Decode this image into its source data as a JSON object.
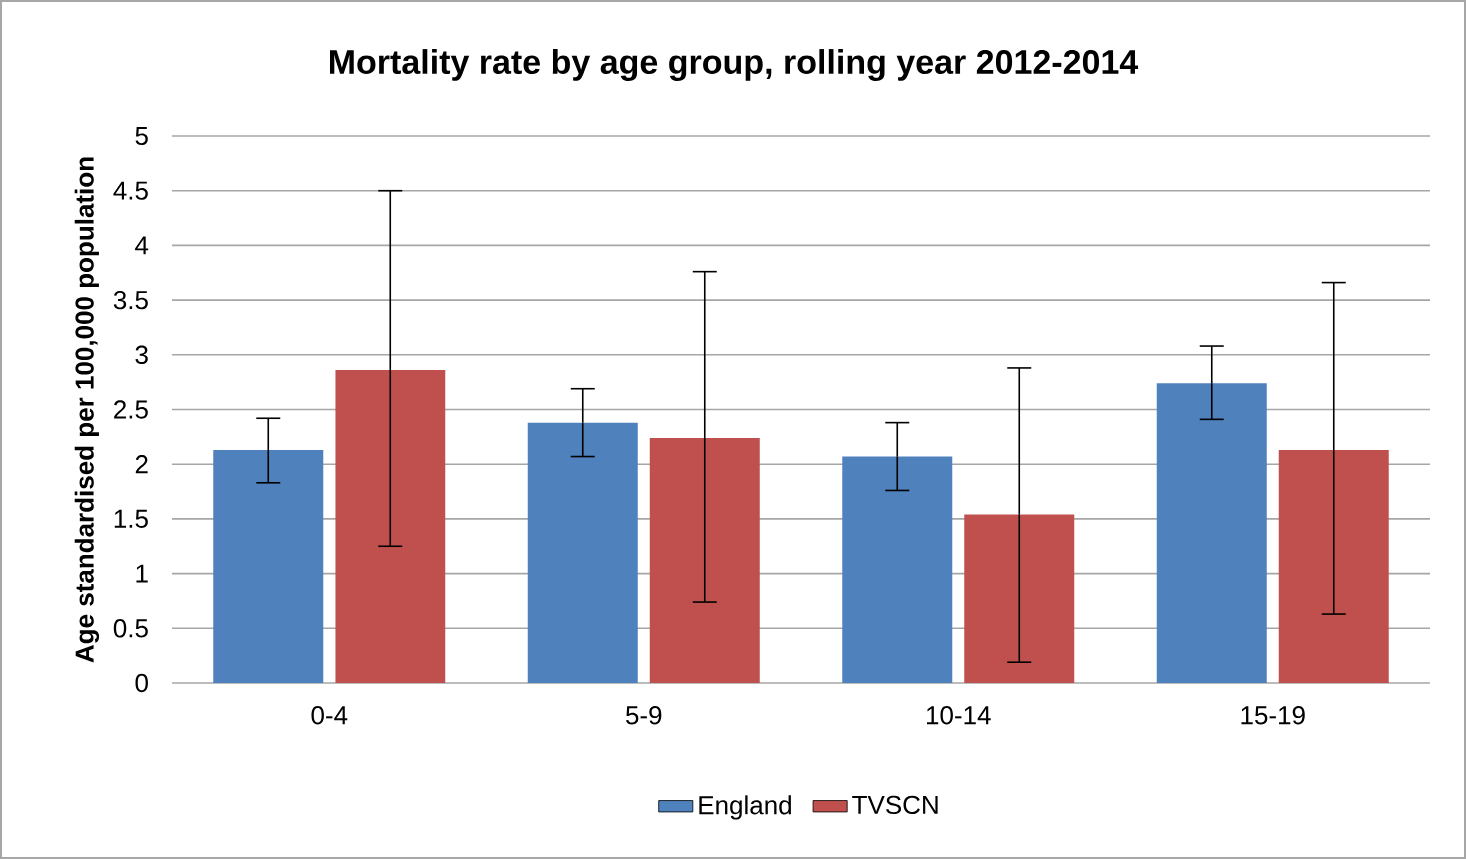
{
  "chart_data": {
    "type": "bar",
    "title": "Mortality rate by age group, rolling year 2012-2014",
    "ylabel": "Age standardised  per 100,000 population",
    "categories": [
      "0-4",
      "5-9",
      "10-14",
      "15-19"
    ],
    "series": [
      {
        "name": "England",
        "color": "#4f81bd",
        "values": [
          2.13,
          2.38,
          2.07,
          2.74
        ],
        "errors": [
          [
            1.83,
            2.42
          ],
          [
            2.07,
            2.69
          ],
          [
            1.76,
            2.38
          ],
          [
            2.41,
            3.08
          ]
        ]
      },
      {
        "name": "TVSCN",
        "color": "#c0504d",
        "values": [
          2.86,
          2.24,
          1.54,
          2.13
        ],
        "errors": [
          [
            1.25,
            4.5
          ],
          [
            0.74,
            3.76
          ],
          [
            0.19,
            2.88
          ],
          [
            0.63,
            3.66
          ]
        ]
      }
    ],
    "ylim": [
      0,
      5
    ],
    "yticks": [
      0,
      0.5,
      1,
      1.5,
      2,
      2.5,
      3,
      3.5,
      4,
      4.5,
      5
    ],
    "grid": "y",
    "legend": "bottom"
  }
}
